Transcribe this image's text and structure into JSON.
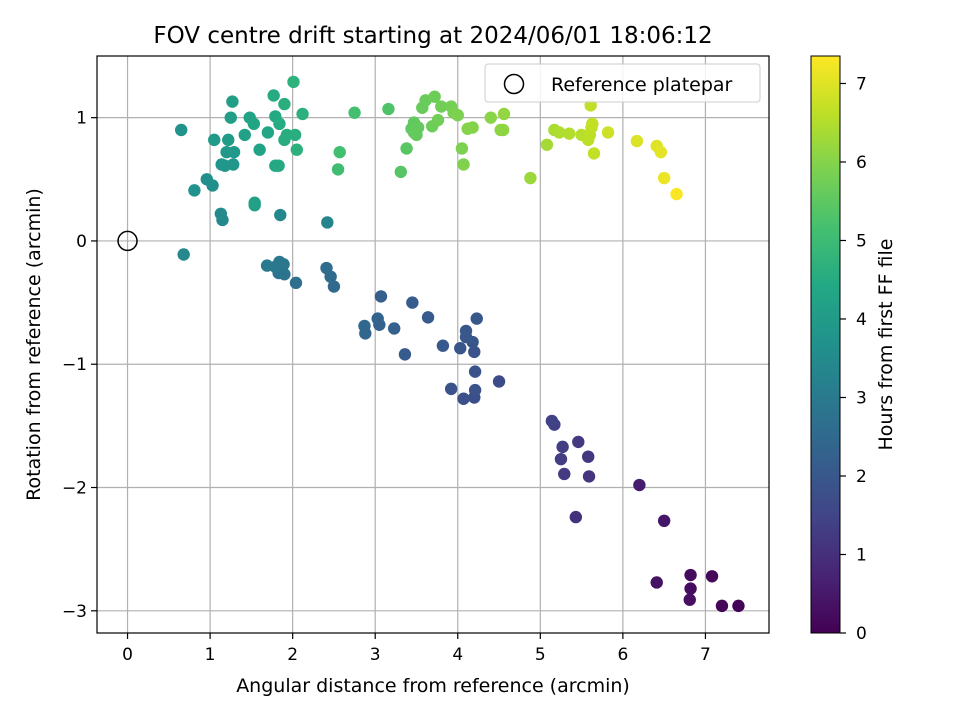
{
  "chart_data": {
    "type": "scatter",
    "title": "FOV centre drift starting at 2024/06/01 18:06:12",
    "xlabel": "Angular distance from reference (arcmin)",
    "ylabel": "Rotation from reference (arcmin)",
    "xlim": [
      -0.37,
      7.77
    ],
    "ylim": [
      -3.18,
      1.5
    ],
    "xticks": [
      0,
      1,
      2,
      3,
      4,
      5,
      6,
      7
    ],
    "yticks": [
      -3,
      -2,
      -1,
      0,
      1
    ],
    "xtick_labels": [
      "0",
      "1",
      "2",
      "3",
      "4",
      "5",
      "6",
      "7"
    ],
    "ytick_labels": [
      "−3",
      "−2",
      "−1",
      "0",
      "1"
    ],
    "grid": true,
    "legend": {
      "position": "top-right",
      "entries": [
        "Reference platepar"
      ]
    },
    "reference_point": {
      "x": 0,
      "y": 0
    },
    "colorbar": {
      "label": "Hours from first FF file",
      "colormap": "viridis",
      "range": [
        0,
        7.35
      ],
      "ticks": [
        0,
        1,
        2,
        3,
        4,
        5,
        6,
        7
      ],
      "tick_labels": [
        "0",
        "1",
        "2",
        "3",
        "4",
        "5",
        "6",
        "7"
      ]
    },
    "points_columns": [
      "x",
      "y",
      "hours"
    ],
    "points": [
      [
        7.4,
        -2.96,
        0.05
      ],
      [
        7.2,
        -2.96,
        0.1
      ],
      [
        7.08,
        -2.72,
        0.15
      ],
      [
        6.82,
        -2.71,
        0.2
      ],
      [
        6.82,
        -2.82,
        0.25
      ],
      [
        6.81,
        -2.91,
        0.3
      ],
      [
        6.41,
        -2.77,
        0.35
      ],
      [
        6.5,
        -2.27,
        0.45
      ],
      [
        6.2,
        -1.98,
        0.55
      ],
      [
        5.43,
        -2.24,
        1.0
      ],
      [
        5.59,
        -1.91,
        1.1
      ],
      [
        5.58,
        -1.75,
        1.15
      ],
      [
        5.46,
        -1.63,
        1.2
      ],
      [
        5.29,
        -1.89,
        1.25
      ],
      [
        5.25,
        -1.77,
        1.3
      ],
      [
        5.27,
        -1.67,
        1.35
      ],
      [
        5.17,
        -1.49,
        1.4
      ],
      [
        5.14,
        -1.46,
        1.45
      ],
      [
        4.5,
        -1.14,
        1.7
      ],
      [
        4.2,
        -1.27,
        1.75
      ],
      [
        4.07,
        -1.28,
        1.8
      ],
      [
        3.92,
        -1.2,
        1.85
      ],
      [
        4.21,
        -1.21,
        1.85
      ],
      [
        4.21,
        -1.06,
        1.9
      ],
      [
        4.2,
        -0.9,
        1.9
      ],
      [
        4.03,
        -0.87,
        1.95
      ],
      [
        4.18,
        -0.82,
        1.95
      ],
      [
        4.1,
        -0.78,
        2.0
      ],
      [
        4.1,
        -0.73,
        2.0
      ],
      [
        4.23,
        -0.63,
        2.0
      ],
      [
        3.82,
        -0.85,
        2.05
      ],
      [
        3.36,
        -0.92,
        2.1
      ],
      [
        3.64,
        -0.62,
        2.1
      ],
      [
        3.45,
        -0.5,
        2.15
      ],
      [
        3.07,
        -0.45,
        2.2
      ],
      [
        3.23,
        -0.71,
        2.25
      ],
      [
        3.05,
        -0.68,
        2.3
      ],
      [
        3.03,
        -0.63,
        2.35
      ],
      [
        2.88,
        -0.75,
        2.4
      ],
      [
        2.87,
        -0.69,
        2.45
      ],
      [
        2.5,
        -0.37,
        2.5
      ],
      [
        2.46,
        -0.29,
        2.55
      ],
      [
        2.41,
        -0.22,
        2.6
      ],
      [
        2.04,
        -0.34,
        2.7
      ],
      [
        1.83,
        -0.26,
        2.75
      ],
      [
        1.9,
        -0.27,
        2.8
      ],
      [
        1.89,
        -0.19,
        2.85
      ],
      [
        1.84,
        -0.17,
        2.9
      ],
      [
        1.79,
        -0.21,
        2.95
      ],
      [
        1.69,
        -0.2,
        3.0
      ],
      [
        0.68,
        -0.11,
        3.4
      ],
      [
        2.42,
        0.15,
        3.3
      ],
      [
        1.85,
        0.21,
        3.35
      ],
      [
        1.15,
        0.17,
        3.45
      ],
      [
        1.13,
        0.22,
        3.5
      ],
      [
        1.03,
        0.45,
        3.6
      ],
      [
        0.96,
        0.5,
        3.65
      ],
      [
        0.81,
        0.41,
        3.7
      ],
      [
        0.65,
        0.9,
        3.75
      ],
      [
        1.14,
        0.62,
        3.8
      ],
      [
        1.18,
        0.61,
        3.85
      ],
      [
        1.28,
        0.62,
        3.85
      ],
      [
        1.2,
        0.72,
        3.9
      ],
      [
        1.29,
        0.72,
        3.9
      ],
      [
        1.05,
        0.82,
        3.95
      ],
      [
        1.22,
        0.82,
        4.0
      ],
      [
        1.25,
        1.0,
        4.05
      ],
      [
        1.27,
        1.13,
        4.1
      ],
      [
        1.54,
        0.29,
        4.15
      ],
      [
        1.54,
        0.31,
        4.2
      ],
      [
        1.42,
        0.86,
        4.2
      ],
      [
        1.48,
        1.0,
        4.25
      ],
      [
        1.6,
        0.74,
        4.25
      ],
      [
        1.53,
        0.95,
        4.3
      ],
      [
        1.7,
        0.88,
        4.35
      ],
      [
        1.79,
        0.61,
        4.4
      ],
      [
        1.83,
        0.61,
        4.45
      ],
      [
        1.79,
        1.01,
        4.45
      ],
      [
        1.77,
        1.18,
        4.5
      ],
      [
        1.84,
        0.95,
        4.5
      ],
      [
        1.9,
        0.82,
        4.55
      ],
      [
        1.93,
        0.86,
        4.55
      ],
      [
        1.9,
        1.11,
        4.6
      ],
      [
        2.03,
        0.86,
        4.6
      ],
      [
        2.05,
        0.74,
        4.65
      ],
      [
        2.12,
        1.03,
        4.65
      ],
      [
        2.01,
        1.29,
        4.7
      ],
      [
        2.55,
        0.58,
        5.05
      ],
      [
        2.57,
        0.72,
        5.1
      ],
      [
        2.75,
        1.04,
        5.15
      ],
      [
        3.16,
        1.07,
        5.3
      ],
      [
        3.31,
        0.56,
        5.4
      ],
      [
        3.38,
        0.75,
        5.45
      ],
      [
        3.44,
        0.91,
        5.5
      ],
      [
        3.47,
        0.96,
        5.55
      ],
      [
        3.47,
        0.88,
        5.55
      ],
      [
        3.52,
        0.92,
        5.6
      ],
      [
        3.5,
        0.86,
        5.6
      ],
      [
        3.57,
        1.08,
        5.65
      ],
      [
        3.61,
        1.14,
        5.65
      ],
      [
        3.69,
        0.93,
        5.7
      ],
      [
        3.72,
        1.17,
        5.7
      ],
      [
        3.76,
        0.98,
        5.75
      ],
      [
        3.8,
        1.09,
        5.75
      ],
      [
        3.92,
        1.09,
        5.8
      ],
      [
        3.95,
        1.04,
        5.85
      ],
      [
        4.0,
        1.02,
        5.9
      ],
      [
        4.05,
        0.75,
        5.9
      ],
      [
        4.07,
        0.62,
        5.95
      ],
      [
        4.12,
        0.91,
        6.0
      ],
      [
        4.18,
        0.92,
        6.0
      ],
      [
        4.4,
        1.0,
        6.05
      ],
      [
        4.52,
        0.9,
        6.1
      ],
      [
        4.55,
        0.9,
        6.1
      ],
      [
        4.56,
        1.03,
        6.15
      ],
      [
        4.88,
        0.51,
        6.25
      ],
      [
        5.08,
        0.78,
        6.35
      ],
      [
        5.17,
        0.9,
        6.4
      ],
      [
        5.23,
        0.88,
        6.45
      ],
      [
        5.35,
        0.87,
        6.5
      ],
      [
        5.5,
        0.86,
        6.55
      ],
      [
        5.58,
        0.82,
        6.6
      ],
      [
        5.6,
        0.86,
        6.6
      ],
      [
        5.61,
        1.1,
        6.65
      ],
      [
        5.62,
        0.92,
        6.65
      ],
      [
        5.63,
        0.95,
        6.7
      ],
      [
        5.65,
        0.71,
        6.7
      ],
      [
        5.82,
        0.88,
        6.8
      ],
      [
        6.17,
        0.81,
        6.95
      ],
      [
        6.41,
        0.77,
        7.0
      ],
      [
        6.46,
        0.72,
        7.05
      ],
      [
        6.5,
        0.51,
        7.15
      ],
      [
        6.65,
        0.38,
        7.3
      ]
    ]
  }
}
